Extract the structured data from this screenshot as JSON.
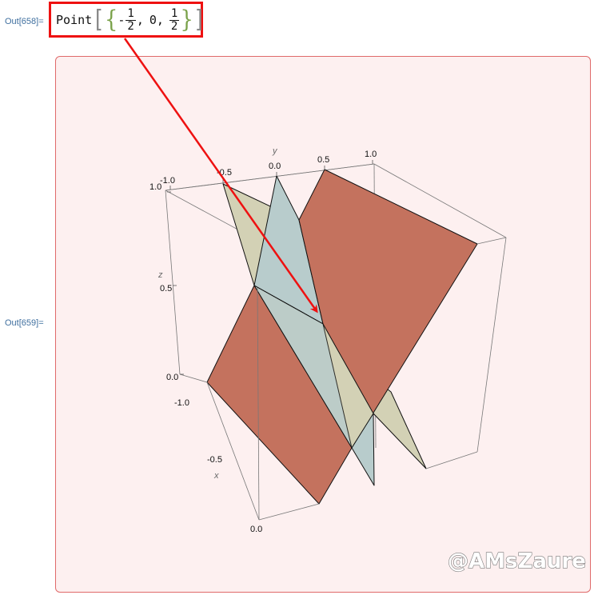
{
  "cells": {
    "out658_label": "Out[658]=",
    "out659_label": "Out[659]="
  },
  "point_output": {
    "head": "Point",
    "open_bracket": "[",
    "open_brace": "{",
    "minus": "-",
    "x_num": "1",
    "x_den": "2",
    "comma1": ",",
    "y_val": "0",
    "comma2": ",",
    "z_num": "1",
    "z_den": "2",
    "close_brace": "}",
    "close_bracket": "]",
    "highlight_color": "#ee1111"
  },
  "plot": {
    "axis_labels": {
      "x": "x",
      "y": "y",
      "z": "z"
    },
    "y_ticks": [
      "-1.0",
      "-0.5",
      "0.0",
      "0.5",
      "1.0"
    ],
    "z_ticks": [
      "1.0",
      "0.5",
      "0.0"
    ],
    "x_ticks": [
      "-1.0",
      "-0.5",
      "0.0"
    ],
    "plane_colors": {
      "plane_1": "#c4725e",
      "plane_2": "#b8cccc",
      "plane_3": "#d3d1b5"
    },
    "frame_border_color": "#e06a6a",
    "frame_background": "#fdf0f0",
    "arrow_color": "#ee1111"
  },
  "watermark": "@AMsZaure"
}
